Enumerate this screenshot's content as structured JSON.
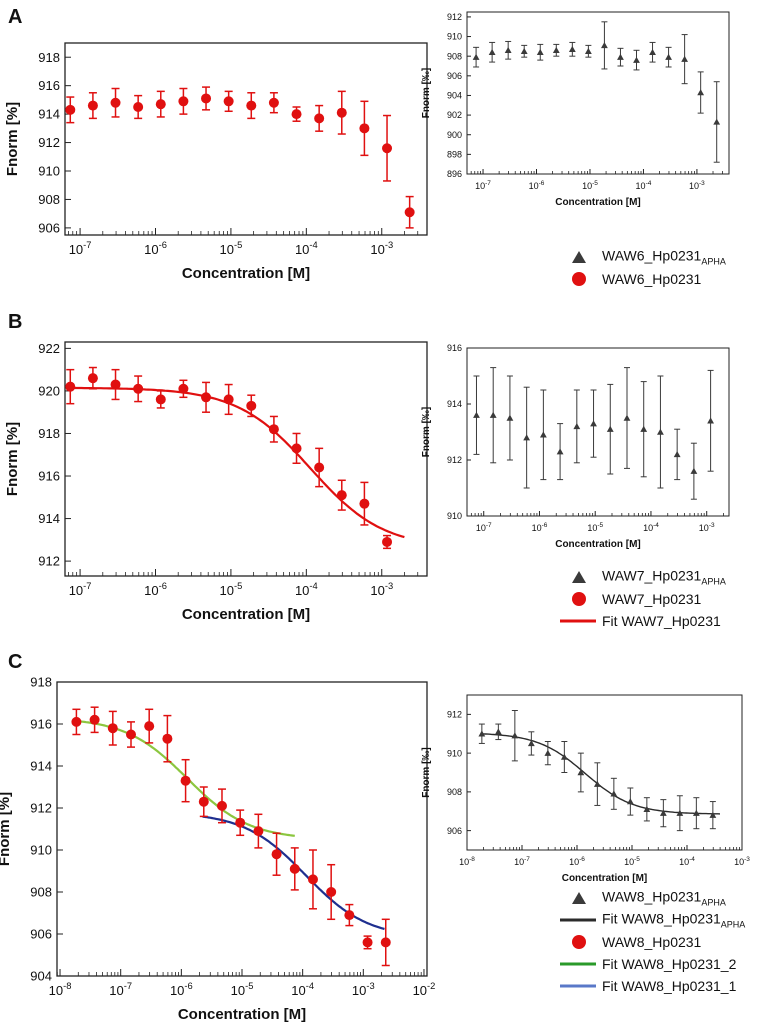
{
  "figure": {
    "panel_letters": [
      "A",
      "B",
      "C"
    ]
  },
  "legends": {
    "A": [
      {
        "symbol": "triangle",
        "color": "#3a3a3a",
        "label": "WAW6_Hp0231",
        "sub": "APHA"
      },
      {
        "symbol": "circle",
        "color": "#e01010",
        "label": "WAW6_Hp0231",
        "sub": ""
      }
    ],
    "B": [
      {
        "symbol": "triangle",
        "color": "#3a3a3a",
        "label": "WAW7_Hp0231",
        "sub": "APHA"
      },
      {
        "symbol": "circle",
        "color": "#e01010",
        "label": "WAW7_Hp0231",
        "sub": ""
      },
      {
        "symbol": "line",
        "color": "#e01010",
        "label": "Fit WAW7_Hp0231",
        "sub": ""
      }
    ],
    "C": [
      {
        "symbol": "triangle",
        "color": "#3a3a3a",
        "label": "WAW8_Hp0231",
        "sub": "APHA"
      },
      {
        "symbol": "line",
        "color": "#2b2b2b",
        "label": "Fit WAW8_Hp0231",
        "sub": "APHA"
      },
      {
        "symbol": "circle",
        "color": "#e01010",
        "label": "WAW8_Hp0231",
        "sub": ""
      },
      {
        "symbol": "line",
        "color": "#2a9a2a",
        "label": "Fit WAW8_Hp0231_2",
        "sub": ""
      },
      {
        "symbol": "line",
        "color": "#5a78c8",
        "label": "Fit WAW8_Hp0231_1",
        "sub": ""
      }
    ]
  },
  "chart_data": [
    {
      "id": "A-main",
      "type": "scatter",
      "color": "#e01010",
      "marker": "circle",
      "xlabel": "Concentration [M]",
      "ylabel": "Fnorm [%]",
      "xlim": [
        -7.2,
        -2.4
      ],
      "ylim": [
        905.5,
        919
      ],
      "xticks": [
        -7,
        -6,
        -5,
        -4,
        -3
      ],
      "yticks": [
        906,
        908,
        910,
        912,
        914,
        916,
        918
      ],
      "x": [
        -7.13,
        -6.83,
        -6.53,
        -6.23,
        -5.93,
        -5.63,
        -5.33,
        -5.03,
        -4.73,
        -4.43,
        -4.13,
        -3.83,
        -3.53,
        -3.23,
        -2.93,
        -2.63
      ],
      "y": [
        914.3,
        914.6,
        914.8,
        914.5,
        914.7,
        914.9,
        915.1,
        914.9,
        914.6,
        914.8,
        914.0,
        913.7,
        914.1,
        913.0,
        911.6,
        907.1
      ],
      "err": [
        0.9,
        0.9,
        1.0,
        0.8,
        0.9,
        0.9,
        0.8,
        0.7,
        0.9,
        0.7,
        0.5,
        0.9,
        1.5,
        1.9,
        2.3,
        1.1
      ],
      "fits": []
    },
    {
      "id": "A-inset",
      "type": "scatter",
      "color": "#3a3a3a",
      "marker": "triangle",
      "xlabel": "Concentration [M]",
      "ylabel": "Fnorm [‰]",
      "xlim": [
        -7.3,
        -2.4
      ],
      "ylim": [
        896,
        912.5
      ],
      "xticks": [
        -7,
        -6,
        -5,
        -4,
        -3
      ],
      "yticks": [
        896,
        898,
        900,
        902,
        904,
        906,
        908,
        910,
        912
      ],
      "x": [
        -7.13,
        -6.83,
        -6.53,
        -6.23,
        -5.93,
        -5.63,
        -5.33,
        -5.03,
        -4.73,
        -4.43,
        -4.13,
        -3.83,
        -3.53,
        -3.23,
        -2.93,
        -2.63
      ],
      "y": [
        907.9,
        908.4,
        908.6,
        908.5,
        908.4,
        908.6,
        908.7,
        908.5,
        909.1,
        907.9,
        907.6,
        908.4,
        907.9,
        907.7,
        904.3,
        901.3
      ],
      "err": [
        1.0,
        1.0,
        0.9,
        0.6,
        0.8,
        0.6,
        0.7,
        0.6,
        2.4,
        0.9,
        1.0,
        1.0,
        1.0,
        2.5,
        2.1,
        4.1
      ],
      "fits": []
    },
    {
      "id": "B-main",
      "type": "scatter",
      "color": "#e01010",
      "marker": "circle",
      "xlabel": "Concentration [M]",
      "ylabel": "Fnorm [%]",
      "xlim": [
        -7.2,
        -2.4
      ],
      "ylim": [
        911.3,
        922.3
      ],
      "xticks": [
        -7,
        -6,
        -5,
        -4,
        -3
      ],
      "yticks": [
        912,
        914,
        916,
        918,
        920,
        922
      ],
      "x": [
        -7.13,
        -6.83,
        -6.53,
        -6.23,
        -5.93,
        -5.63,
        -5.33,
        -5.03,
        -4.73,
        -4.43,
        -4.13,
        -3.83,
        -3.53,
        -3.23,
        -2.93
      ],
      "y": [
        920.2,
        920.6,
        920.3,
        920.1,
        919.6,
        920.1,
        919.7,
        919.6,
        919.3,
        918.2,
        917.3,
        916.4,
        915.1,
        914.7,
        912.9
      ],
      "err": [
        0.8,
        0.5,
        0.7,
        0.6,
        0.4,
        0.4,
        0.7,
        0.7,
        0.5,
        0.6,
        0.7,
        0.9,
        0.7,
        1.0,
        0.3
      ],
      "fits": [
        {
          "name": "Fit WAW7_Hp0231",
          "color": "#e01010",
          "model": "sigmoid",
          "top": 920.15,
          "bottom": 912.6,
          "log_ec50": -3.95,
          "hill": 0.9,
          "from": -7.13,
          "to": -2.7
        }
      ]
    },
    {
      "id": "B-inset",
      "type": "scatter",
      "color": "#3a3a3a",
      "marker": "triangle",
      "xlabel": "Concentration [M]",
      "ylabel": "Fnorm [‰]",
      "xlim": [
        -7.3,
        -2.6
      ],
      "ylim": [
        910,
        916
      ],
      "xticks": [
        -7,
        -6,
        -5,
        -4,
        -3
      ],
      "yticks": [
        910,
        912,
        914,
        916
      ],
      "x": [
        -7.13,
        -6.83,
        -6.53,
        -6.23,
        -5.93,
        -5.63,
        -5.33,
        -5.03,
        -4.73,
        -4.43,
        -4.13,
        -3.83,
        -3.53,
        -3.23,
        -2.93
      ],
      "y": [
        913.6,
        913.6,
        913.5,
        912.8,
        912.9,
        912.3,
        913.2,
        913.3,
        913.1,
        913.5,
        913.1,
        913.0,
        912.2,
        911.6,
        913.4
      ],
      "err": [
        1.4,
        1.7,
        1.5,
        1.8,
        1.6,
        1.0,
        1.3,
        1.2,
        1.6,
        1.8,
        1.7,
        2.0,
        0.9,
        1.0,
        1.8
      ],
      "fits": []
    },
    {
      "id": "C-main",
      "type": "scatter",
      "color": "#e01010",
      "marker": "circle",
      "xlabel": "Concentration [M]",
      "ylabel": "Fnorm [%]",
      "xlim": [
        -8.05,
        -1.95
      ],
      "ylim": [
        904,
        918
      ],
      "xticks": [
        -8,
        -7,
        -6,
        -5,
        -4,
        -3,
        -2
      ],
      "yticks": [
        904,
        906,
        908,
        910,
        912,
        914,
        916,
        918
      ],
      "x": [
        -7.73,
        -7.43,
        -7.13,
        -6.83,
        -6.53,
        -6.23,
        -5.93,
        -5.63,
        -5.33,
        -5.03,
        -4.73,
        -4.43,
        -4.13,
        -3.83,
        -3.53,
        -3.23,
        -2.93,
        -2.63
      ],
      "y": [
        916.1,
        916.2,
        915.8,
        915.5,
        915.9,
        915.3,
        913.3,
        912.3,
        912.1,
        911.3,
        910.9,
        909.8,
        909.1,
        908.6,
        908.0,
        906.9,
        905.6,
        905.6
      ],
      "err": [
        0.6,
        0.6,
        0.8,
        0.6,
        0.8,
        1.1,
        1.0,
        0.7,
        0.8,
        0.6,
        0.8,
        1.0,
        1.0,
        1.4,
        1.3,
        0.5,
        0.3,
        1.1
      ],
      "fits": [
        {
          "name": "Fit WAW8_Hp0231_2",
          "color": "#8cc63f",
          "model": "sigmoid",
          "top": 916.3,
          "bottom": 910.5,
          "log_ec50": -5.9,
          "hill": 0.85,
          "from": -7.75,
          "to": -4.13
        },
        {
          "name": "Fit WAW8_Hp0231_1",
          "color": "#1f2f8f",
          "model": "sigmoid",
          "top": 911.8,
          "bottom": 905.8,
          "log_ec50": -3.95,
          "hill": 0.85,
          "from": -5.65,
          "to": -2.65
        }
      ]
    },
    {
      "id": "C-inset",
      "type": "scatter",
      "color": "#3a3a3a",
      "marker": "triangle",
      "xlabel": "Concentration [M]",
      "ylabel": "Fnorm [‰]",
      "xlim": [
        -8,
        -3
      ],
      "ylim": [
        905,
        913
      ],
      "xticks": [
        -8,
        -7,
        -6,
        -5,
        -4,
        -3
      ],
      "yticks": [
        906,
        908,
        910,
        912
      ],
      "x": [
        -7.73,
        -7.43,
        -7.13,
        -6.83,
        -6.53,
        -6.23,
        -5.93,
        -5.63,
        -5.33,
        -5.03,
        -4.73,
        -4.43,
        -4.13,
        -3.83,
        -3.53
      ],
      "y": [
        911.0,
        911.1,
        910.9,
        910.5,
        910.0,
        909.8,
        909.0,
        908.4,
        907.9,
        907.5,
        907.1,
        906.9,
        906.9,
        906.9,
        906.8
      ],
      "err": [
        0.5,
        0.4,
        1.3,
        0.6,
        0.6,
        0.8,
        1.0,
        1.1,
        0.8,
        0.7,
        0.6,
        0.7,
        0.9,
        0.8,
        0.7
      ],
      "fits": [
        {
          "name": "Fit WAW8_Hp0231 APHA",
          "color": "#2b2b2b",
          "model": "sigmoid",
          "top": 911.05,
          "bottom": 906.85,
          "log_ec50": -5.85,
          "hill": 1.0,
          "from": -7.73,
          "to": -3.4
        }
      ]
    }
  ]
}
